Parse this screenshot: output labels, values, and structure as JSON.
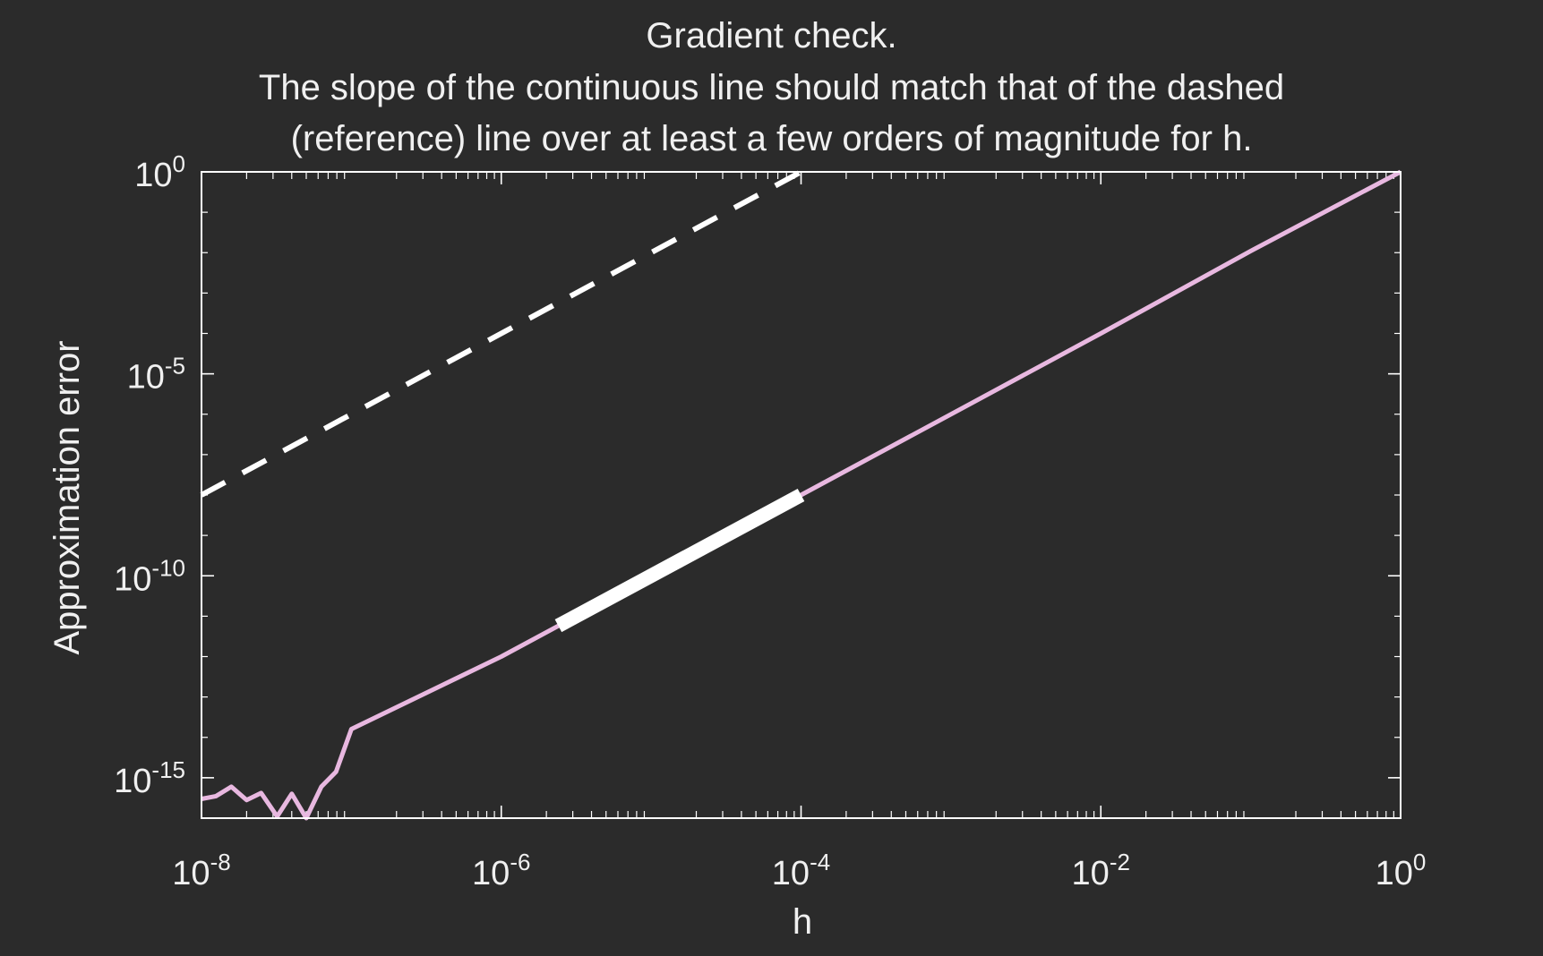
{
  "colors": {
    "background": "#2b2b2b",
    "axes": "#ffffff",
    "error_line": "#e8b8e0",
    "highlight_segment": "#ffffff",
    "reference_line": "#ffffff",
    "text": "#f0f0f0"
  },
  "chart_data": {
    "type": "line",
    "title_lines": [
      "Gradient check.",
      "The slope of the continuous line should match that of the dashed",
      "(reference) line over at least a few orders of magnitude for h."
    ],
    "xlabel": "h",
    "ylabel": "Approximation error",
    "xscale": "log",
    "yscale": "log",
    "xlim": [
      1e-08,
      1
    ],
    "ylim": [
      1e-16,
      1
    ],
    "x_ticks": [
      {
        "base": "10",
        "exp": "-8",
        "value": 1e-08
      },
      {
        "base": "10",
        "exp": "-6",
        "value": 1e-06
      },
      {
        "base": "10",
        "exp": "-4",
        "value": 0.0001
      },
      {
        "base": "10",
        "exp": "-2",
        "value": 0.01
      },
      {
        "base": "10",
        "exp": "0",
        "value": 1
      }
    ],
    "y_ticks": [
      {
        "base": "10",
        "exp": "0",
        "value": 1
      },
      {
        "base": "10",
        "exp": "-5",
        "value": 1e-05
      },
      {
        "base": "10",
        "exp": "-10",
        "value": 1e-10
      },
      {
        "base": "10",
        "exp": "-15",
        "value": 1e-15
      }
    ],
    "grid": false,
    "series": [
      {
        "style": "solid",
        "color": "#e8b8e0",
        "x": [
          1e-08,
          1.25e-08,
          1.58e-08,
          2e-08,
          2.5e-08,
          3.2e-08,
          4e-08,
          5e-08,
          6.3e-08,
          7.9e-08,
          1e-07,
          1e-06,
          1e-05,
          0.0001,
          0.001,
          0.01,
          0.1,
          1
        ],
        "y": [
          3e-16,
          3.5e-16,
          6e-16,
          2.8e-16,
          4.2e-16,
          1.1e-16,
          4e-16,
          1e-16,
          6e-16,
          1.4e-15,
          1.6e-14,
          1e-12,
          1e-10,
          1e-08,
          1e-06,
          0.0001,
          0.011,
          1
        ]
      },
      {
        "style": "solid-thick",
        "color": "#ffffff",
        "x": [
          2.4e-06,
          0.0001
        ],
        "y": [
          5.8e-12,
          1e-08
        ]
      },
      {
        "style": "dashed",
        "color": "#ffffff",
        "x": [
          1e-08,
          0.0001
        ],
        "y": [
          1e-08,
          1
        ]
      }
    ]
  }
}
